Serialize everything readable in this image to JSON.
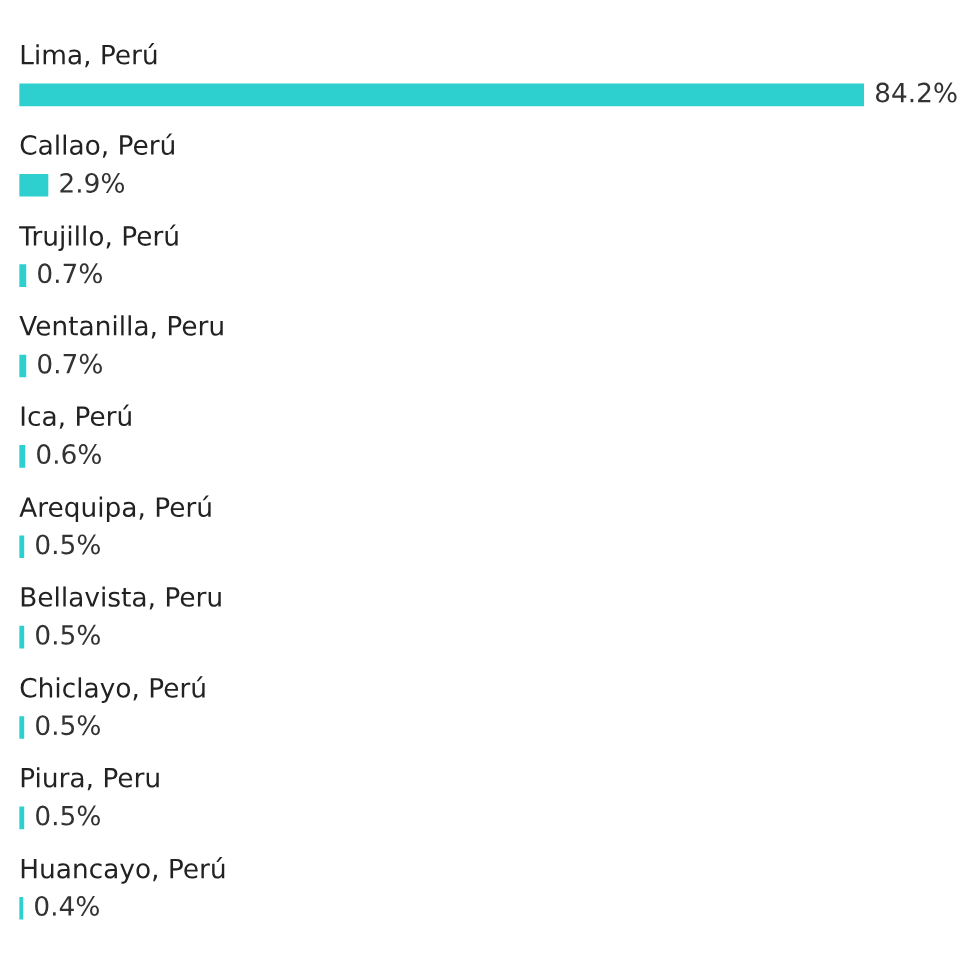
{
  "chart_data": {
    "type": "bar",
    "orientation": "horizontal",
    "categories": [
      "Lima, Perú",
      "Callao, Perú",
      "Trujillo, Perú",
      "Ventanilla, Peru",
      "Ica, Perú",
      "Arequipa, Perú",
      "Bellavista, Peru",
      "Chiclayo, Perú",
      "Piura, Peru",
      "Huancayo, Perú"
    ],
    "values": [
      84.2,
      2.9,
      0.7,
      0.7,
      0.6,
      0.5,
      0.5,
      0.5,
      0.5,
      0.4
    ],
    "value_labels": [
      "84.2%",
      "2.9%",
      "0.7%",
      "0.7%",
      "0.6%",
      "0.5%",
      "0.5%",
      "0.5%",
      "0.5%",
      "0.4%"
    ],
    "color": "#2ecfcf"
  }
}
